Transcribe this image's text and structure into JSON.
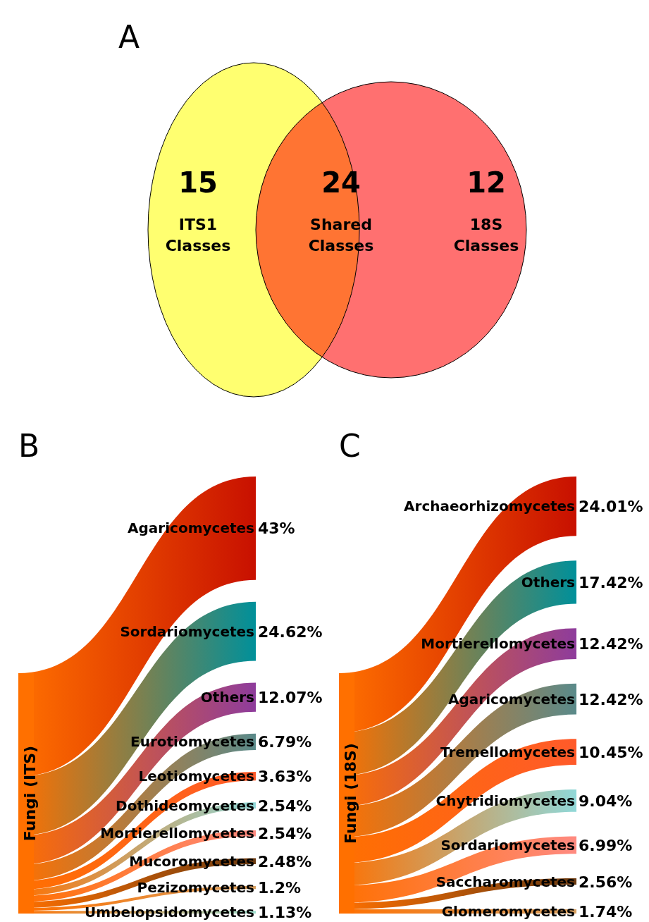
{
  "chart_data": [
    {
      "type": "other",
      "title": "A",
      "categories": [
        "ITS1 Classes",
        "Shared Classes",
        "18S Classes"
      ],
      "values": [
        15,
        24,
        12
      ],
      "data_labels": true,
      "colors": [
        "#ffff70",
        "#ff7433",
        "#ff7070"
      ]
    },
    {
      "type": "other",
      "title": "B",
      "ylabel": "Fungi (ITS)",
      "categories": [
        "Agaricomycetes",
        "Sordariomycetes",
        "Others",
        "Eurotiomycetes",
        "Leotiomycetes",
        "Dothideomycetes",
        "Mortierellomycetes",
        "Mucoromycetes",
        "Pezizomycetes",
        "Umbelopsidomycetes"
      ],
      "values": [
        43,
        24.62,
        12.07,
        6.79,
        3.63,
        2.54,
        2.54,
        2.48,
        1.2,
        1.13
      ],
      "value_labels": [
        "43%",
        "24.62%",
        "12.07%",
        "6.79%",
        "3.63%",
        "2.54%",
        "2.54%",
        "2.48%",
        "1.2%",
        "1.13%"
      ],
      "colors": [
        "#c81000",
        "#00909a",
        "#8e3c9c",
        "#5a8a8a",
        "#ff5a2a",
        "#90d8d8",
        "#ff8a80",
        "#6b3a10",
        "#d8a060",
        "#a0e0d0"
      ]
    },
    {
      "type": "other",
      "title": "C",
      "ylabel": "Fungi (18S)",
      "categories": [
        "Archaeorhizomycetes",
        "Others",
        "Mortierellomycetes",
        "Agaricomycetes",
        "Tremellomycetes",
        "Chytridiomycetes",
        "Sordariomycetes",
        "Saccharomycetes",
        "Glomeromycetes"
      ],
      "values": [
        24.01,
        17.42,
        12.42,
        12.42,
        10.45,
        9.04,
        6.99,
        2.56,
        1.74
      ],
      "value_labels": [
        "24.01%",
        "17.42%",
        "12.42%",
        "12.42%",
        "10.45%",
        "9.04%",
        "6.99%",
        "2.56%",
        "1.74%"
      ],
      "colors": [
        "#c81000",
        "#00909a",
        "#8e3c9c",
        "#5a8a8a",
        "#ff5a2a",
        "#90d8d8",
        "#ff8a80",
        "#6b3a10",
        "#d8a060"
      ]
    }
  ]
}
